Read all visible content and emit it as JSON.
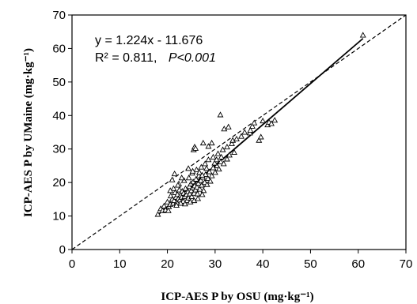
{
  "chart_data": {
    "type": "scatter",
    "title": "",
    "xlabel": "ICP-AES P by OSU (mg·kg⁻¹)",
    "ylabel": "ICP-AES P by UMaine (mg·kg⁻¹)",
    "xlim": [
      0,
      70
    ],
    "ylim": [
      0,
      70
    ],
    "xticks": [
      "0",
      "10",
      "20",
      "30",
      "40",
      "50",
      "60",
      "70"
    ],
    "yticks": [
      "0",
      "10",
      "20",
      "30",
      "40",
      "50",
      "60",
      "70"
    ],
    "grid": false,
    "legend": "none",
    "annotation_equation": "y = 1.224x - 11.676",
    "annotation_r2": "R² = 0.811,",
    "annotation_p": "P<0.001",
    "regression": {
      "slope": 1.224,
      "intercept": -11.676,
      "x_range": [
        18,
        61
      ]
    },
    "reference_line": {
      "type": "1:1",
      "x": [
        0,
        70
      ],
      "y": [
        0,
        70
      ]
    },
    "marker": "open-triangle",
    "series": [
      {
        "points": [
          [
            18.0,
            10.5
          ],
          [
            18.6,
            12.2
          ],
          [
            19.0,
            11.6
          ],
          [
            19.3,
            13.0
          ],
          [
            19.6,
            11.8
          ],
          [
            20.0,
            14.2
          ],
          [
            20.3,
            12.8
          ],
          [
            20.6,
            13.5
          ],
          [
            20.7,
            16.0
          ],
          [
            21.0,
            15.0
          ],
          [
            21.2,
            13.8
          ],
          [
            21.4,
            14.6
          ],
          [
            21.6,
            17.0
          ],
          [
            21.8,
            15.6
          ],
          [
            22.0,
            14.0
          ],
          [
            22.1,
            16.4
          ],
          [
            22.3,
            15.2
          ],
          [
            22.5,
            17.8
          ],
          [
            22.6,
            14.8
          ],
          [
            22.8,
            16.2
          ],
          [
            23.0,
            15.6
          ],
          [
            23.1,
            17.4
          ],
          [
            23.3,
            14.4
          ],
          [
            23.4,
            16.8
          ],
          [
            23.6,
            15.8
          ],
          [
            23.8,
            18.2
          ],
          [
            24.0,
            16.4
          ],
          [
            24.1,
            14.6
          ],
          [
            24.3,
            17.2
          ],
          [
            24.4,
            15.4
          ],
          [
            24.6,
            18.8
          ],
          [
            24.7,
            16.6
          ],
          [
            24.9,
            19.6
          ],
          [
            25.0,
            17.6
          ],
          [
            25.1,
            15.8
          ],
          [
            25.3,
            18.4
          ],
          [
            25.4,
            20.2
          ],
          [
            25.6,
            16.8
          ],
          [
            25.7,
            19.0
          ],
          [
            25.9,
            17.8
          ],
          [
            26.0,
            21.0
          ],
          [
            26.2,
            18.6
          ],
          [
            26.3,
            16.6
          ],
          [
            26.5,
            19.8
          ],
          [
            26.6,
            22.0
          ],
          [
            26.8,
            18.0
          ],
          [
            27.0,
            20.6
          ],
          [
            27.2,
            19.2
          ],
          [
            27.4,
            21.6
          ],
          [
            27.6,
            17.6
          ],
          [
            27.8,
            20.0
          ],
          [
            28.0,
            22.4
          ],
          [
            28.3,
            19.4
          ],
          [
            28.5,
            21.2
          ],
          [
            28.8,
            23.2
          ],
          [
            29.0,
            20.4
          ],
          [
            29.3,
            22.0
          ],
          [
            29.6,
            24.4
          ],
          [
            30.0,
            23.0
          ],
          [
            30.4,
            25.0
          ],
          [
            30.8,
            24.0
          ],
          [
            31.2,
            26.2
          ],
          [
            31.8,
            25.6
          ],
          [
            32.5,
            27.0
          ],
          [
            33.0,
            28.2
          ],
          [
            34.0,
            29.0
          ],
          [
            21.0,
            20.8
          ],
          [
            21.5,
            22.6
          ],
          [
            21.3,
            18.2
          ],
          [
            22.4,
            19.6
          ],
          [
            23.5,
            20.6
          ],
          [
            24.5,
            21.4
          ],
          [
            25.2,
            22.8
          ],
          [
            26.1,
            23.8
          ],
          [
            27.1,
            24.6
          ],
          [
            27.9,
            25.6
          ],
          [
            28.6,
            26.8
          ],
          [
            29.6,
            27.6
          ],
          [
            30.6,
            28.6
          ],
          [
            31.6,
            29.8
          ],
          [
            32.5,
            30.6
          ],
          [
            33.5,
            31.6
          ],
          [
            24.4,
            24.2
          ],
          [
            25.3,
            23.4
          ],
          [
            25.5,
            29.8
          ],
          [
            25.7,
            30.6
          ],
          [
            25.9,
            30.2
          ],
          [
            27.5,
            31.8
          ],
          [
            28.6,
            30.8
          ],
          [
            29.3,
            31.8
          ],
          [
            31.1,
            40.2
          ],
          [
            31.9,
            36.0
          ],
          [
            32.8,
            36.6
          ],
          [
            33.7,
            32.6
          ],
          [
            34.5,
            33.0
          ],
          [
            35.5,
            33.8
          ],
          [
            37.3,
            34.8
          ],
          [
            37.8,
            36.8
          ],
          [
            38.2,
            37.8
          ],
          [
            39.2,
            32.6
          ],
          [
            39.6,
            33.6
          ],
          [
            40.0,
            38.4
          ],
          [
            41.0,
            37.2
          ],
          [
            41.3,
            38.0
          ],
          [
            41.8,
            37.6
          ],
          [
            42.5,
            38.6
          ],
          [
            37.4,
            35.6
          ],
          [
            36.2,
            35.0
          ],
          [
            61.0,
            64.0
          ],
          [
            20.6,
            17.6
          ],
          [
            22.2,
            19.2
          ],
          [
            23.0,
            21.4
          ],
          [
            26.7,
            23.0
          ],
          [
            27.3,
            22.2
          ],
          [
            28.2,
            24.2
          ],
          [
            29.9,
            25.8
          ],
          [
            30.3,
            26.8
          ],
          [
            31.3,
            27.6
          ],
          [
            22.8,
            13.8
          ],
          [
            23.7,
            13.6
          ],
          [
            24.8,
            14.2
          ],
          [
            25.6,
            14.6
          ],
          [
            26.4,
            15.2
          ],
          [
            27.3,
            16.4
          ],
          [
            21.9,
            13.2
          ],
          [
            20.2,
            11.6
          ]
        ]
      }
    ]
  }
}
